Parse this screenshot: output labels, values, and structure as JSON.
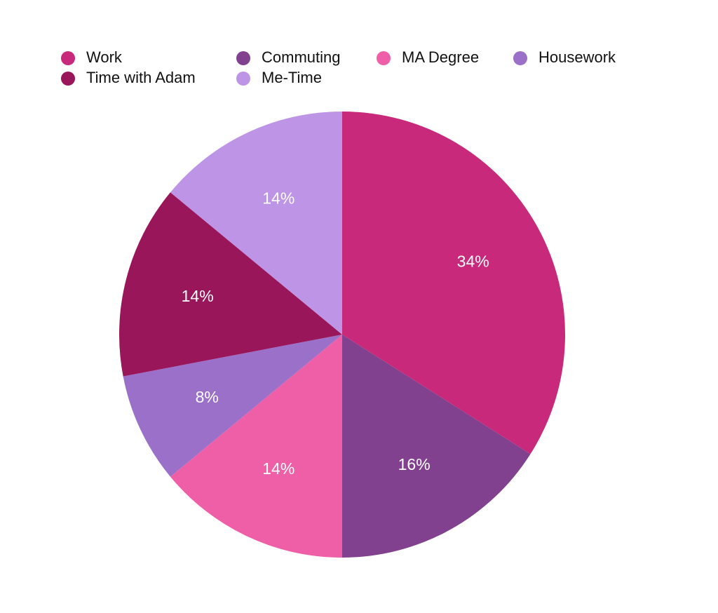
{
  "chart_data": {
    "type": "pie",
    "categories": [
      "Work",
      "Commuting",
      "MA Degree",
      "Housework",
      "Time with Adam",
      "Me-Time"
    ],
    "values": [
      34,
      16,
      14,
      8,
      14,
      14
    ],
    "value_labels": [
      "34%",
      "16%",
      "14%",
      "8%",
      "14%",
      "14%"
    ],
    "colors": [
      "#c9297a",
      "#82418f",
      "#ef5fa7",
      "#9b70c9",
      "#99165a",
      "#be94e6"
    ]
  }
}
